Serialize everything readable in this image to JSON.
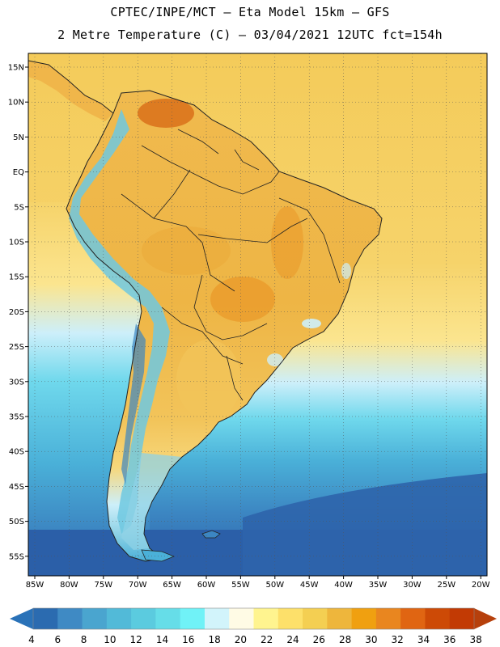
{
  "title_line1": "CPTEC/INPE/MCT  –   Eta Model 15km  –  GFS",
  "title_line2": "2 Metre Temperature (C) – 03/04/2021 12UTC fct=154h",
  "lat_labels": [
    "15N",
    "10N",
    "5N",
    "EQ",
    "5S",
    "10S",
    "15S",
    "20S",
    "25S",
    "30S",
    "35S",
    "40S",
    "45S",
    "50S",
    "55S"
  ],
  "lon_labels": [
    "85W",
    "80W",
    "75W",
    "70W",
    "65W",
    "60W",
    "55W",
    "50W",
    "45W",
    "40W",
    "35W",
    "30W",
    "25W",
    "20W"
  ],
  "colorbar": {
    "labels": [
      "4",
      "6",
      "8",
      "10",
      "12",
      "14",
      "16",
      "18",
      "20",
      "22",
      "24",
      "26",
      "28",
      "30",
      "32",
      "34",
      "36",
      "38"
    ],
    "colors": [
      "#2b6bb0",
      "#3f8ac4",
      "#4aa5cf",
      "#52bad8",
      "#5bcbdf",
      "#66dde8",
      "#70f2f7",
      "#d2f4fb",
      "#fffbe5",
      "#fff48f",
      "#fde06a",
      "#f4cf52",
      "#eeb63c",
      "#f0a010",
      "#e9861f",
      "#e06512",
      "#cd4a06",
      "#c23a04"
    ],
    "low_arrow_color": "#2a72b8",
    "high_arrow_color": "#b6400c"
  },
  "map_colors": {
    "ocean_south_deep": "#2b5fa8",
    "ocean_south_mid": "#3c86c2",
    "ocean_south": "#4ab0d8",
    "ocean_cool": "#6fd8ec",
    "ocean_pale": "#cdeffa",
    "ocean_warm": "#fbe087",
    "ocean_tropic": "#f4ca58",
    "land_warm": "#f0b84c",
    "land_hot": "#e99a2a",
    "land_very_hot": "#d9701a",
    "andes_cold": "#6ec8e0",
    "patagonia": "#8fd2e6",
    "border_color": "#222222"
  }
}
